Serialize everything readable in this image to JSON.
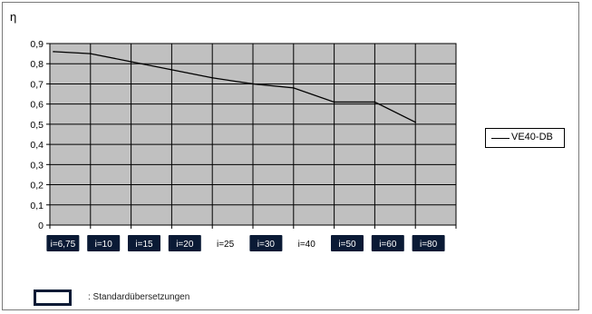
{
  "chart_data": {
    "type": "line",
    "ylabel": "η",
    "ylim": [
      0,
      0.9
    ],
    "yticks": [
      "0",
      "0,1",
      "0,2",
      "0,3",
      "0,4",
      "0,5",
      "0,6",
      "0,7",
      "0,8",
      "0,9"
    ],
    "grid": true,
    "plot_background": "#c0c0c0",
    "categories": [
      "i=6,75",
      "i=10",
      "i=15",
      "i=20",
      "i=25",
      "i=30",
      "i=40",
      "i=50",
      "i=60",
      "i=80"
    ],
    "standard_ratios": [
      true,
      true,
      true,
      true,
      false,
      true,
      false,
      true,
      true,
      true
    ],
    "series": [
      {
        "name": "VE40-DB",
        "color": "#000000",
        "values": [
          0.86,
          0.85,
          0.81,
          0.77,
          0.73,
          0.7,
          0.68,
          0.61,
          0.61,
          0.51
        ]
      }
    ],
    "legend": "right"
  },
  "note": {
    "text": ": Standardübersetzungen"
  }
}
